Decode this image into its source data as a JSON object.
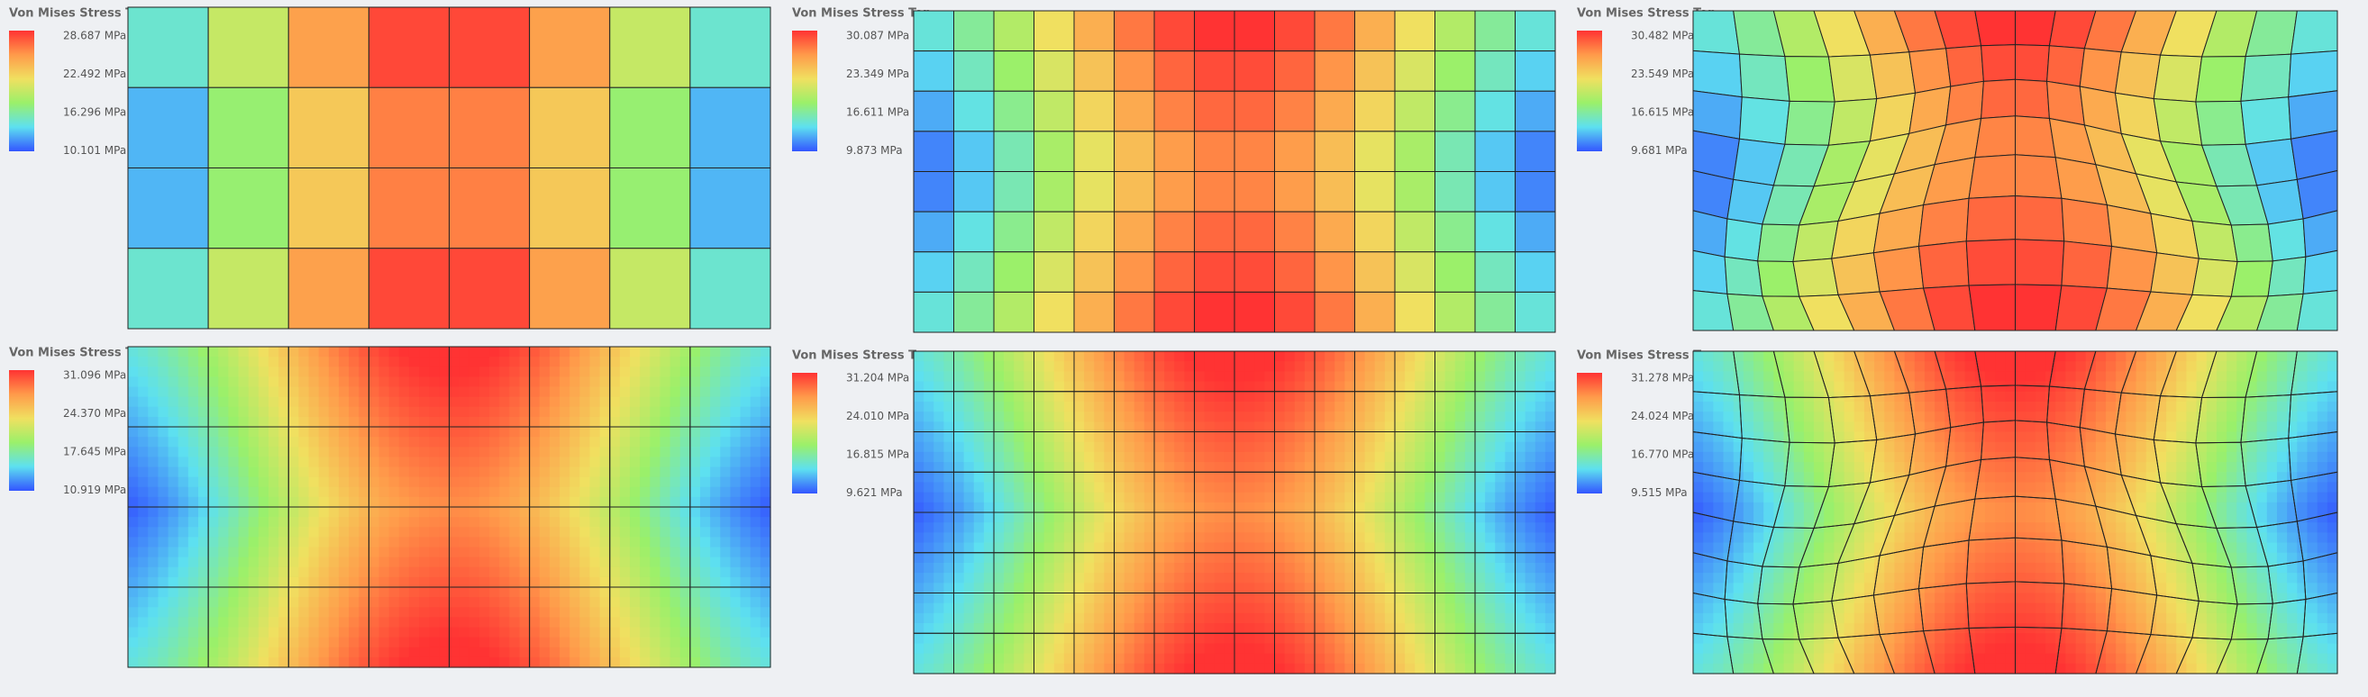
{
  "panels": [
    {
      "legend": {
        "title": "Von Mises Stress Top",
        "labels": [
          "28.687 MPa",
          "22.492 MPa",
          "16.296 MPa",
          "10.101 MPa"
        ]
      }
    },
    {
      "legend": {
        "title": "Von Mises Stress Top",
        "labels": [
          "30.087 MPa",
          "23.349 MPa",
          "16.611 MPa",
          "9.873 MPa"
        ]
      }
    },
    {
      "legend": {
        "title": "Von Mises Stress Top",
        "labels": [
          "30.482 MPa",
          "23.549 MPa",
          "16.615 MPa",
          "9.681 MPa"
        ]
      }
    },
    {
      "legend": {
        "title": "Von Mises Stress Top",
        "labels": [
          "31.096 MPa",
          "24.370 MPa",
          "17.645 MPa",
          "10.919 MPa"
        ]
      }
    },
    {
      "legend": {
        "title": "Von Mises Stress Top",
        "labels": [
          "31.204 MPa",
          "24.010 MPa",
          "16.815 MPa",
          "9.621 MPa"
        ]
      }
    },
    {
      "legend": {
        "title": "Von Mises Stress Top",
        "labels": [
          "31.278 MPa",
          "24.024 MPa",
          "16.770 MPa",
          "9.515 MPa"
        ]
      }
    }
  ]
}
